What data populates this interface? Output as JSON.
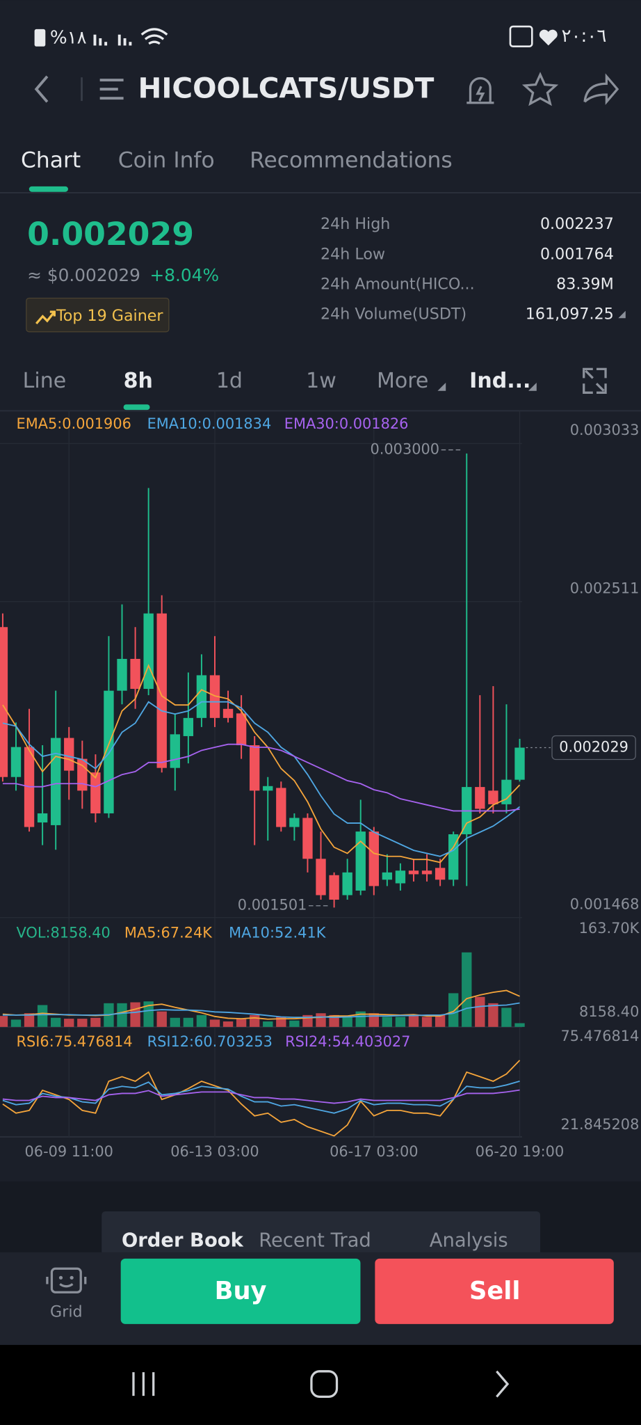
{
  "status_bar": {
    "battery": "%١٨",
    "time": "٢٠:٠٦"
  },
  "header": {
    "title": "HICOOLCATS/USDT"
  },
  "tabs": [
    "Chart",
    "Coin Info",
    "Recommendations"
  ],
  "ticker": {
    "price": "0.002029",
    "fiat_price": "≈ $0.002029",
    "change": "+8.04%",
    "badge": "Top 19 Gainer",
    "stats": [
      {
        "label": "24h High",
        "value": "0.002237"
      },
      {
        "label": "24h Low",
        "value": "0.001764"
      },
      {
        "label": "24h Amount(HICO...",
        "value": "83.39M"
      },
      {
        "label": "24h Volume(USDT)",
        "value": "161,097.25"
      }
    ]
  },
  "intervals": [
    "Line",
    "8h",
    "1d",
    "1w",
    "More",
    "Ind..."
  ],
  "chart_data": [
    {
      "type": "candlestick",
      "categories": [
        null,
        null,
        null,
        null,
        null,
        "06-09 11:00",
        null,
        null,
        null,
        null,
        null,
        null,
        null,
        null,
        null,
        null,
        "06-13 03:00",
        null,
        null,
        null,
        null,
        null,
        null,
        null,
        null,
        null,
        null,
        null,
        "06-17 03:00",
        null,
        null,
        null,
        null,
        null,
        null,
        null,
        null,
        null,
        null,
        "06-20 19:00"
      ],
      "open": [
        0.002427,
        0.001932,
        0.002031,
        0.001782,
        0.001773,
        0.002061,
        0.001992,
        0.001947,
        0.001812,
        0.002217,
        0.002322,
        0.002223,
        0.002472,
        0.001962,
        0.002067,
        0.002127,
        0.002268,
        0.002157,
        0.002142,
        0.002037,
        0.001887,
        0.001896,
        0.001767,
        0.001797,
        0.001662,
        0.001608,
        0.001542,
        0.001557,
        0.001752,
        0.001593,
        0.001581,
        0.001623,
        0.001623,
        0.001632,
        0.001593,
        0.001743,
        0.001899,
        0.001887,
        0.001842,
        0.001923
      ],
      "high": [
        0.002472,
        0.002112,
        0.002157,
        0.002037,
        0.002217,
        0.002097,
        0.002052,
        0.002007,
        0.002397,
        0.002502,
        0.002427,
        0.002886,
        0.002532,
        0.002142,
        0.002277,
        0.002337,
        0.002397,
        0.002217,
        0.002202,
        0.002067,
        0.001932,
        0.001917,
        0.001812,
        0.001812,
        0.001752,
        0.001617,
        0.001662,
        0.001857,
        0.001767,
        0.001677,
        0.001647,
        0.001662,
        0.001677,
        0.001662,
        0.001752,
        0.003,
        0.002202,
        0.002232,
        0.002172,
        0.002058
      ],
      "low": [
        0.001917,
        0.001887,
        0.001752,
        0.001707,
        0.001692,
        0.001857,
        0.001827,
        0.001782,
        0.001797,
        0.002172,
        0.002157,
        0.002202,
        0.001947,
        0.001887,
        0.001977,
        0.002097,
        0.002097,
        0.002112,
        0.001992,
        0.001707,
        0.001722,
        0.001752,
        0.001722,
        0.001617,
        0.001527,
        0.001501,
        0.001527,
        0.001542,
        0.001542,
        0.001572,
        0.001557,
        0.001587,
        0.001587,
        0.001572,
        0.001572,
        0.001572,
        0.001812,
        0.001812,
        0.001812,
        0.001917
      ],
      "close": [
        0.001932,
        0.002031,
        0.001767,
        0.001812,
        0.002061,
        0.001953,
        0.001887,
        0.001812,
        0.002217,
        0.002322,
        0.002223,
        0.002472,
        0.001962,
        0.002073,
        0.002127,
        0.002268,
        0.002127,
        0.002127,
        0.002037,
        0.001887,
        0.001902,
        0.001767,
        0.001797,
        0.001662,
        0.001542,
        0.001527,
        0.001617,
        0.001752,
        0.001572,
        0.001617,
        0.001623,
        0.001611,
        0.001611,
        0.001593,
        0.001743,
        0.001899,
        0.001827,
        0.001842,
        0.001923,
        0.002029
      ],
      "up_color": "#1fbd8c",
      "down_color": "#f2525b",
      "ylim": [
        0.001467,
        0.003141
      ],
      "yticks": [
        0.003033,
        0.002511,
        0.001468
      ],
      "grid": true,
      "high_marker": {
        "value": 0.003,
        "label": "0.003000"
      },
      "low_marker": {
        "value": 0.001501,
        "label": "0.001501"
      },
      "series": [
        {
          "name": "EMA5:0.001906",
          "color": "#f5a53b",
          "values": [
            0.00217,
            0.0021,
            0.00202,
            0.00195,
            0.002,
            0.00199,
            0.00197,
            0.00193,
            0.00204,
            0.00215,
            0.00219,
            0.0023,
            0.0022,
            0.00217,
            0.00217,
            0.00222,
            0.0022,
            0.00219,
            0.00215,
            0.00208,
            0.00203,
            0.00196,
            0.00192,
            0.00185,
            0.00176,
            0.0017,
            0.00168,
            0.00172,
            0.00168,
            0.00167,
            0.00167,
            0.00166,
            0.00166,
            0.00165,
            0.0017,
            0.00178,
            0.0018,
            0.00184,
            0.00186,
            0.001906
          ]
        },
        {
          "name": "EMA10:0.001834",
          "color": "#4fa7e3",
          "values": [
            0.00211,
            0.0021,
            0.00204,
            0.002,
            0.00201,
            0.002,
            0.00199,
            0.00196,
            0.00201,
            0.00208,
            0.00211,
            0.00218,
            0.00215,
            0.00214,
            0.00215,
            0.00218,
            0.00218,
            0.00218,
            0.00216,
            0.00211,
            0.00208,
            0.00203,
            0.002,
            0.00194,
            0.00187,
            0.00181,
            0.00178,
            0.00178,
            0.00175,
            0.00173,
            0.00171,
            0.00169,
            0.00168,
            0.00167,
            0.00169,
            0.00173,
            0.00175,
            0.00177,
            0.0018,
            0.001834
          ]
        },
        {
          "name": "EMA30:0.001826",
          "color": "#a763f0",
          "values": [
            0.00191,
            0.00191,
            0.0019,
            0.0019,
            0.00191,
            0.00191,
            0.00191,
            0.0019,
            0.00192,
            0.00194,
            0.00195,
            0.00198,
            0.00198,
            0.00199,
            0.002,
            0.00202,
            0.00203,
            0.00204,
            0.00204,
            0.00203,
            0.00203,
            0.00202,
            0.002,
            0.00198,
            0.00196,
            0.00194,
            0.00192,
            0.00191,
            0.00189,
            0.00188,
            0.00186,
            0.00185,
            0.00184,
            0.00183,
            0.00182,
            0.00182,
            0.00182,
            0.00182,
            0.00182,
            0.001826
          ]
        }
      ]
    },
    {
      "type": "bar",
      "legend": "VOL:8158.40",
      "legend_color": "#27b48a",
      "values": [
        24000,
        16000,
        30000,
        48000,
        20000,
        18000,
        18000,
        20000,
        52000,
        52000,
        54000,
        56000,
        34000,
        20000,
        20000,
        26000,
        16000,
        12000,
        18000,
        26000,
        12000,
        22000,
        14000,
        26000,
        30000,
        26000,
        22000,
        34000,
        30000,
        22000,
        22000,
        26000,
        22000,
        26000,
        74000,
        163700,
        66000,
        52000,
        42000,
        8158.4
      ],
      "up_color": "#178a68",
      "down_color": "#c0444b",
      "ylim": [
        0,
        163700
      ],
      "max_label": {
        "value": 163700,
        "label": "163.70K"
      },
      "last_label": {
        "value": 8158.4,
        "label": "8158.40"
      },
      "series": [
        {
          "name": "MA5:67.24K",
          "color": "#f5a53b",
          "values": [
            28000,
            26000,
            27000,
            30000,
            28000,
            26000,
            26000,
            25000,
            26000,
            32000,
            39000,
            47000,
            50000,
            43000,
            37000,
            31000,
            23000,
            19000,
            18000,
            20000,
            17000,
            18000,
            18000,
            20000,
            21000,
            24000,
            24000,
            28000,
            28000,
            27000,
            26000,
            27000,
            24000,
            24000,
            34000,
            62000,
            70000,
            76000,
            80000,
            67240
          ]
        },
        {
          "name": "MA10:52.41K",
          "color": "#4fa7e3",
          "values": [
            26000,
            26000,
            26000,
            27000,
            27000,
            27000,
            26000,
            26000,
            27000,
            30000,
            32000,
            36000,
            38000,
            37000,
            37000,
            36000,
            33000,
            32000,
            30000,
            28000,
            25000,
            22000,
            21000,
            21000,
            22000,
            21000,
            22000,
            23000,
            24000,
            24000,
            25000,
            25000,
            26000,
            26000,
            30000,
            41000,
            45000,
            47000,
            48000,
            52410
          ]
        }
      ]
    },
    {
      "type": "line",
      "ylim": [
        20.5,
        96
      ],
      "max_label": 75.476814,
      "min_label": 21.845208,
      "series": [
        {
          "name": "RSI6:75.476814",
          "color": "#f5a53b",
          "values": [
            44.47,
            38,
            39.95,
            54.16,
            50.93,
            47.7,
            39.95,
            38,
            60.62,
            63.85,
            60.62,
            67.08,
            47.7,
            50.93,
            55.45,
            60.62,
            57.39,
            54.16,
            44.47,
            36.07,
            38,
            31.55,
            33.49,
            28.32,
            25.09,
            21.845208,
            29.61,
            46.41,
            36.07,
            39.95,
            39.95,
            38,
            38,
            36.07,
            47.7,
            67.08,
            63.85,
            60.62,
            65.79,
            75.476814
          ]
        },
        {
          "name": "RSI12:60.703253",
          "color": "#4fa7e3",
          "values": [
            47,
            44,
            45,
            52,
            50,
            49,
            46,
            45,
            55,
            57,
            56,
            60,
            51,
            52,
            54,
            57,
            56,
            55,
            50,
            46,
            46,
            43,
            44,
            42,
            40,
            38,
            41,
            47,
            44,
            45,
            45,
            44,
            44,
            43,
            48,
            57,
            56,
            56,
            58,
            60.703253
          ]
        },
        {
          "name": "RSI24:54.403027",
          "color": "#a763f0",
          "values": [
            48,
            47,
            47,
            50,
            49,
            49,
            48,
            47,
            51,
            52,
            52,
            54,
            50,
            51,
            52,
            53,
            53,
            53,
            51,
            49,
            49,
            48,
            48,
            47,
            46,
            45,
            46,
            48,
            47,
            47,
            47,
            47,
            47,
            47,
            49,
            52,
            52,
            52,
            53,
            54.403027
          ]
        }
      ]
    }
  ],
  "order_tabs": [
    "Order Book",
    "Recent Trad",
    "Analysis"
  ],
  "actions": {
    "grid": "Grid",
    "buy": "Buy",
    "sell": "Sell"
  }
}
